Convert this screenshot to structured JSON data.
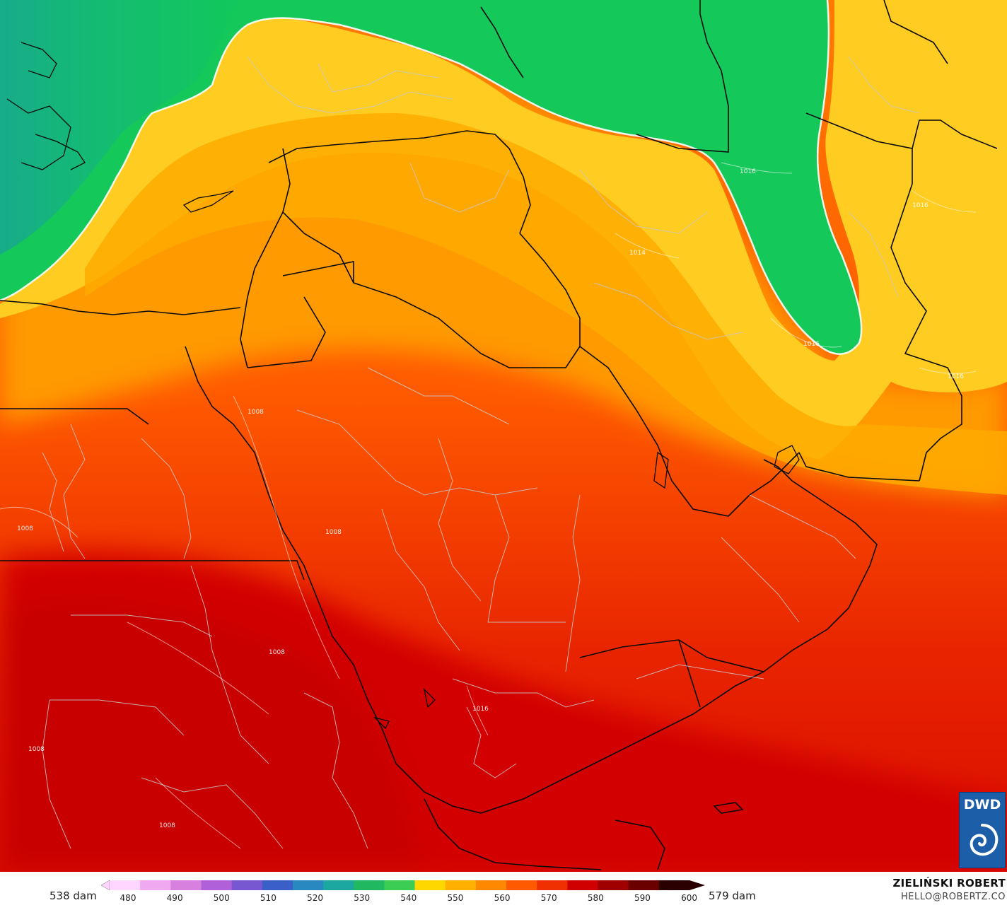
{
  "legend": {
    "min_label": "538 dam",
    "max_label": "579 dam",
    "ticks": [
      "480",
      "490",
      "500",
      "510",
      "520",
      "530",
      "540",
      "550",
      "560",
      "570",
      "580",
      "590",
      "600"
    ],
    "colors": [
      "#ffd6ff",
      "#f0a8f0",
      "#d880e0",
      "#b060d8",
      "#7858d0",
      "#3a60c8",
      "#2a88c0",
      "#1aa8a0",
      "#20b860",
      "#3ccd55",
      "#ffd700",
      "#ffb000",
      "#ff8800",
      "#ff5a00",
      "#f03000",
      "#d00000",
      "#a00000",
      "#6a0000",
      "#2a0000"
    ]
  },
  "credit": {
    "name": "ZIELIŃSKI ROBERT",
    "email": "HELLO@ROBERTZ.CO"
  },
  "logo": {
    "text": "DWD"
  },
  "contour_labels": [
    "1016",
    "1016",
    "1016",
    "1014",
    "1008",
    "1008",
    "1008",
    "1008",
    "1008",
    "1016",
    "1008",
    "1016"
  ]
}
